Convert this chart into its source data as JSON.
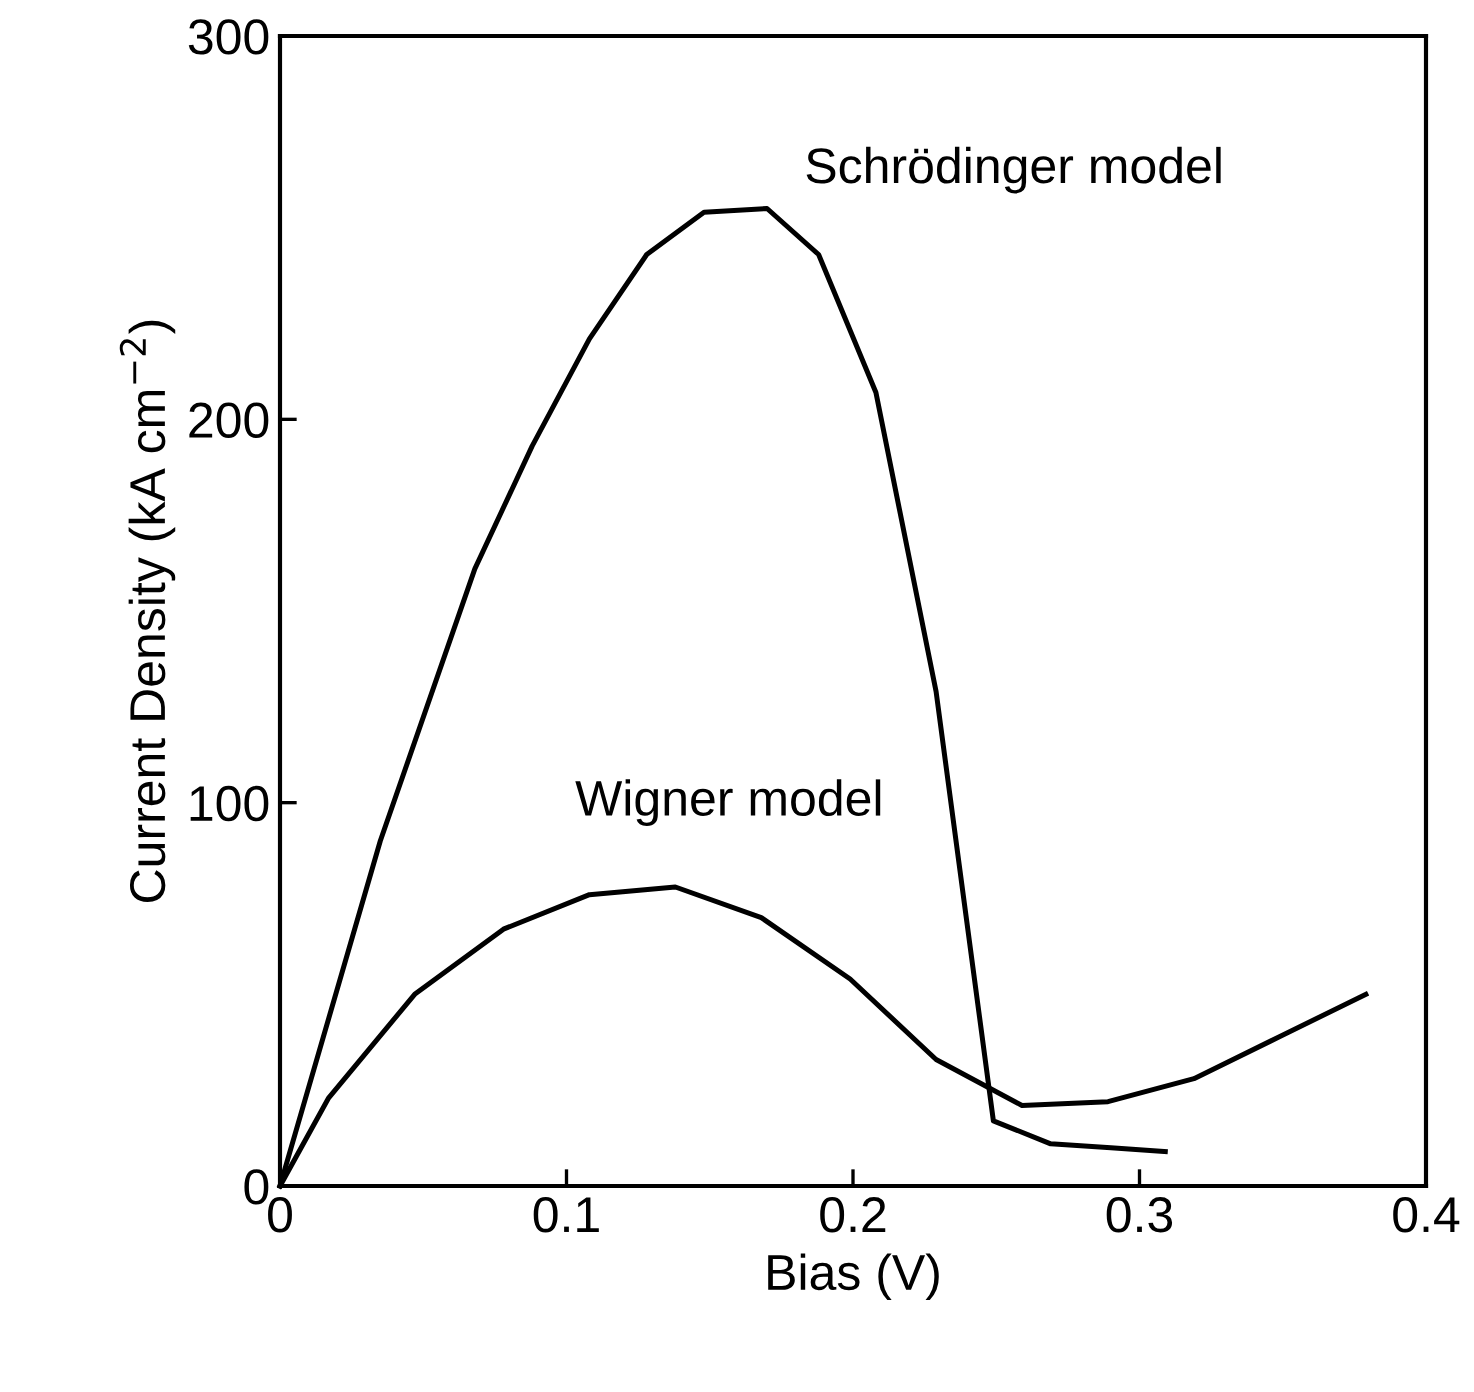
{
  "chart_data": {
    "type": "line",
    "xlabel": "Bias (V)",
    "ylabel": "Current Density (kA cm$^{−2}$)",
    "xlim": [
      0,
      0.4
    ],
    "ylim": [
      0,
      300
    ],
    "xticks": [
      0,
      0.1,
      0.2,
      0.3,
      0.4
    ],
    "yticks": [
      0,
      100,
      200,
      300
    ],
    "grid": false,
    "legend": false,
    "marker": "none",
    "line_style": "solid",
    "series": [
      {
        "name": "Schrödinger model",
        "color": "#000000",
        "x": [
          0,
          0.035,
          0.068,
          0.088,
          0.108,
          0.128,
          0.148,
          0.17,
          0.188,
          0.208,
          0.229,
          0.249,
          0.269,
          0.29,
          0.309
        ],
        "values": [
          0,
          90,
          161,
          193,
          221,
          243,
          254,
          255,
          243,
          207,
          129,
          17,
          11,
          10,
          9
        ]
      },
      {
        "name": "Wigner model",
        "color": "#000000",
        "x": [
          0,
          0.017,
          0.047,
          0.078,
          0.108,
          0.138,
          0.168,
          0.199,
          0.229,
          0.259,
          0.289,
          0.319,
          0.349,
          0.379
        ],
        "values": [
          0,
          23,
          50,
          67,
          76,
          78,
          70,
          54,
          33,
          21,
          22,
          28,
          39,
          50
        ]
      }
    ]
  }
}
